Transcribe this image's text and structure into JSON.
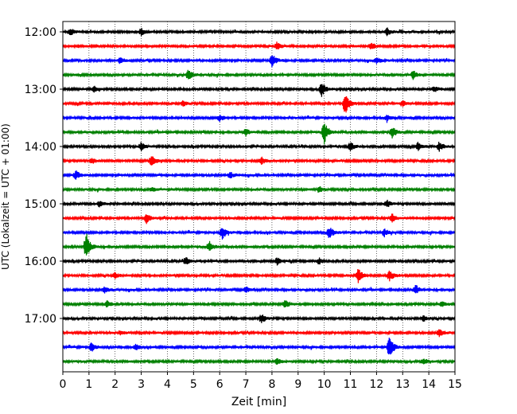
{
  "chart_data": {
    "type": "line",
    "xlabel": "Zeit  [min]",
    "ylabel": "UTC (Lokalzeit = UTC + 01:00)",
    "xlim": [
      0,
      15
    ],
    "x_ticks": [
      0,
      1,
      2,
      3,
      4,
      5,
      6,
      7,
      8,
      9,
      10,
      11,
      12,
      13,
      14,
      15
    ],
    "row_interval_min": 15,
    "y_ticks": [
      "12:00",
      "13:00",
      "14:00",
      "15:00",
      "16:00",
      "17:00"
    ],
    "grid": "vertical-dotted",
    "series_colors": [
      "#000000",
      "#ff0000",
      "#0000ff",
      "#008000"
    ],
    "rows": [
      {
        "start": "12:00",
        "events": [
          [
            0.3,
            0.5
          ],
          [
            3.0,
            0.5
          ],
          [
            12.4,
            0.5
          ]
        ]
      },
      {
        "start": "12:15",
        "events": [
          [
            8.2,
            0.6
          ],
          [
            11.8,
            0.4
          ]
        ]
      },
      {
        "start": "12:30",
        "events": [
          [
            8.0,
            1.0
          ],
          [
            2.2,
            0.4
          ],
          [
            12.0,
            0.4
          ]
        ]
      },
      {
        "start": "12:45",
        "events": [
          [
            4.8,
            0.8
          ],
          [
            13.4,
            0.6
          ]
        ]
      },
      {
        "start": "13:00",
        "events": [
          [
            9.9,
            1.0
          ],
          [
            1.2,
            0.4
          ],
          [
            14.2,
            0.4
          ]
        ]
      },
      {
        "start": "13:15",
        "events": [
          [
            10.8,
            1.6
          ],
          [
            4.6,
            0.4
          ],
          [
            13.0,
            0.4
          ]
        ]
      },
      {
        "start": "13:30",
        "events": [
          [
            6.0,
            0.4
          ],
          [
            12.4,
            0.4
          ]
        ]
      },
      {
        "start": "13:45",
        "events": [
          [
            10.0,
            1.6
          ],
          [
            12.6,
            0.9
          ],
          [
            7.0,
            0.5
          ]
        ]
      },
      {
        "start": "14:00",
        "events": [
          [
            3.0,
            0.6
          ],
          [
            11.0,
            0.6
          ],
          [
            13.6,
            0.6
          ],
          [
            14.4,
            0.6
          ]
        ]
      },
      {
        "start": "14:15",
        "events": [
          [
            3.4,
            0.9
          ],
          [
            7.6,
            0.5
          ],
          [
            1.1,
            0.4
          ]
        ]
      },
      {
        "start": "14:30",
        "events": [
          [
            0.5,
            0.6
          ],
          [
            6.4,
            0.4
          ]
        ]
      },
      {
        "start": "14:45",
        "events": [
          [
            9.8,
            0.4
          ],
          [
            3.4,
            0.3
          ]
        ]
      },
      {
        "start": "15:00",
        "events": [
          [
            1.4,
            0.4
          ],
          [
            12.4,
            0.5
          ]
        ]
      },
      {
        "start": "15:15",
        "events": [
          [
            3.2,
            0.7
          ],
          [
            12.6,
            0.6
          ]
        ]
      },
      {
        "start": "15:30",
        "events": [
          [
            6.1,
            1.0
          ],
          [
            10.2,
            0.9
          ],
          [
            12.3,
            0.5
          ]
        ]
      },
      {
        "start": "15:45",
        "events": [
          [
            0.9,
            2.0
          ],
          [
            5.6,
            0.7
          ]
        ]
      },
      {
        "start": "16:00",
        "events": [
          [
            4.7,
            0.5
          ],
          [
            8.2,
            0.5
          ],
          [
            9.8,
            0.4
          ]
        ]
      },
      {
        "start": "16:15",
        "events": [
          [
            11.3,
            1.0
          ],
          [
            12.5,
            0.8
          ],
          [
            2.0,
            0.4
          ]
        ]
      },
      {
        "start": "16:30",
        "events": [
          [
            7.0,
            0.4
          ],
          [
            13.5,
            0.6
          ],
          [
            1.6,
            0.4
          ]
        ]
      },
      {
        "start": "16:45",
        "events": [
          [
            8.5,
            0.6
          ],
          [
            1.7,
            0.5
          ],
          [
            14.5,
            0.4
          ]
        ]
      },
      {
        "start": "17:00",
        "events": [
          [
            7.6,
            0.6
          ],
          [
            13.8,
            0.4
          ]
        ]
      },
      {
        "start": "17:15",
        "events": [
          [
            14.4,
            0.5
          ],
          [
            2.2,
            0.3
          ]
        ]
      },
      {
        "start": "17:30",
        "events": [
          [
            12.5,
            1.6
          ],
          [
            1.1,
            0.6
          ],
          [
            2.8,
            0.4
          ]
        ]
      },
      {
        "start": "17:45",
        "events": [
          [
            8.2,
            0.4
          ],
          [
            13.8,
            0.4
          ]
        ]
      }
    ]
  }
}
